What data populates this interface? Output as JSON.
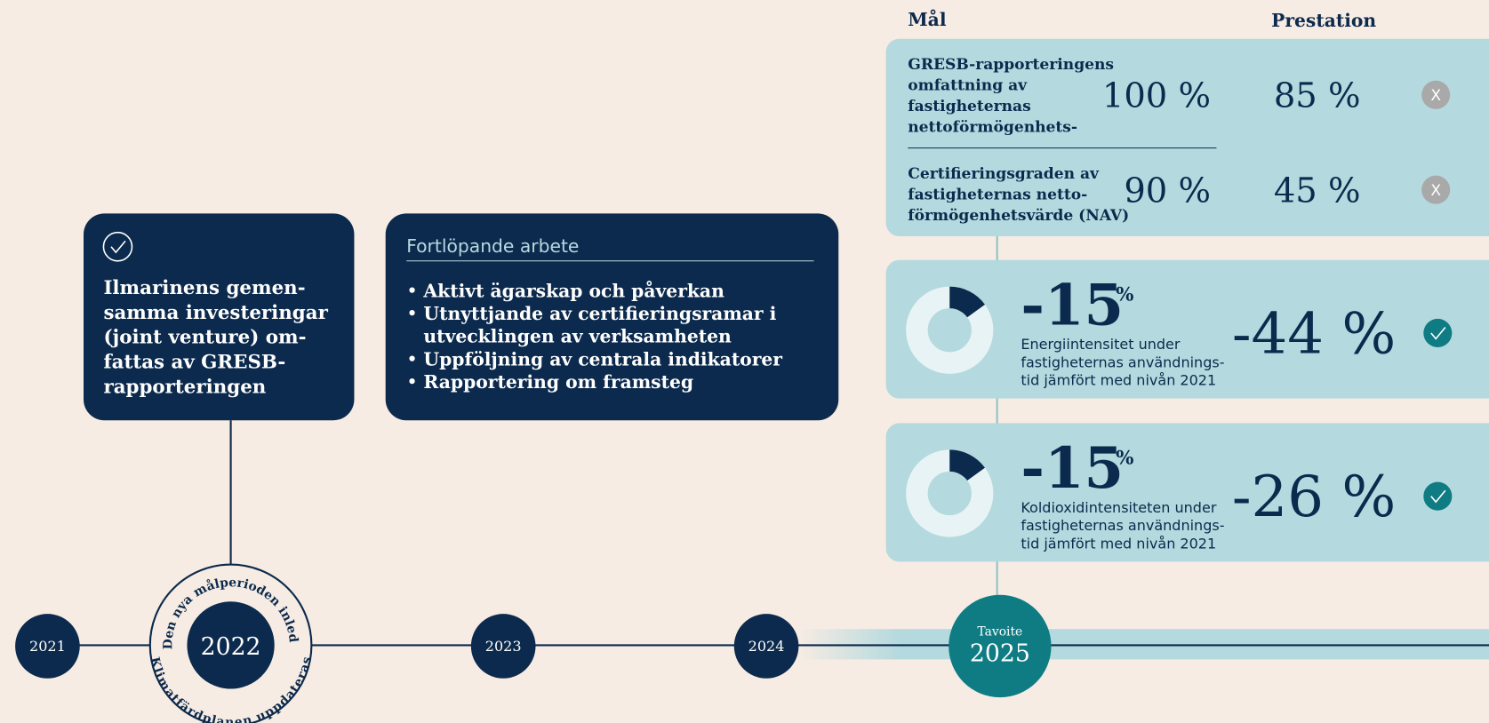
{
  "headers": {
    "goal": "Mål",
    "performance": "Prestation"
  },
  "card_2022": {
    "lines": [
      "Ilmarinens gemen-",
      "samma investeringar",
      "(joint venture) om-",
      "fattas av GRESB-",
      "rapporteringen"
    ]
  },
  "ongoing": {
    "title": "Fortlöpande arbete",
    "items": [
      [
        "Aktivt ägarskap och påverkan"
      ],
      [
        "Utnyttjande av certifieringsramar i",
        "utvecklingen av verksamheten"
      ],
      [
        "Uppföljning av centrala indikatorer"
      ],
      [
        "Rapportering om framsteg"
      ]
    ]
  },
  "gresb": [
    {
      "lines": [
        "GRESB-rapporteringens",
        "omfattning av",
        "fastigheternas",
        "nettoförmögenhets-"
      ],
      "target": "100 %",
      "result": "85 %",
      "status": "X"
    },
    {
      "lines": [
        "Certifieringsgraden av",
        "fastigheternas netto-",
        "förmögenhetsvärde (NAV)"
      ],
      "target": "90 %",
      "result": "45 %",
      "status": "X"
    }
  ],
  "intensity": [
    {
      "target": -15,
      "unit": "%",
      "lines": [
        "Energiintensitet under",
        "fastigheternas användnings-",
        "tid jämfört med nivån 2021"
      ],
      "result": "-44 %"
    },
    {
      "target": -15,
      "unit": "%",
      "lines": [
        "Koldioxidintensiteten under",
        "fastigheternas användnings-",
        "tid jämfört med nivån 2021"
      ],
      "result": "-26 %"
    }
  ],
  "timeline": {
    "years": [
      "2021",
      "2022",
      "2023",
      "2024"
    ],
    "goal": {
      "label": "Tavoite",
      "year": "2025"
    },
    "circle_texts": {
      "top": "Den nya målperioden inleds",
      "bottom": "Klimatfärdplanen uppdateras"
    }
  }
}
